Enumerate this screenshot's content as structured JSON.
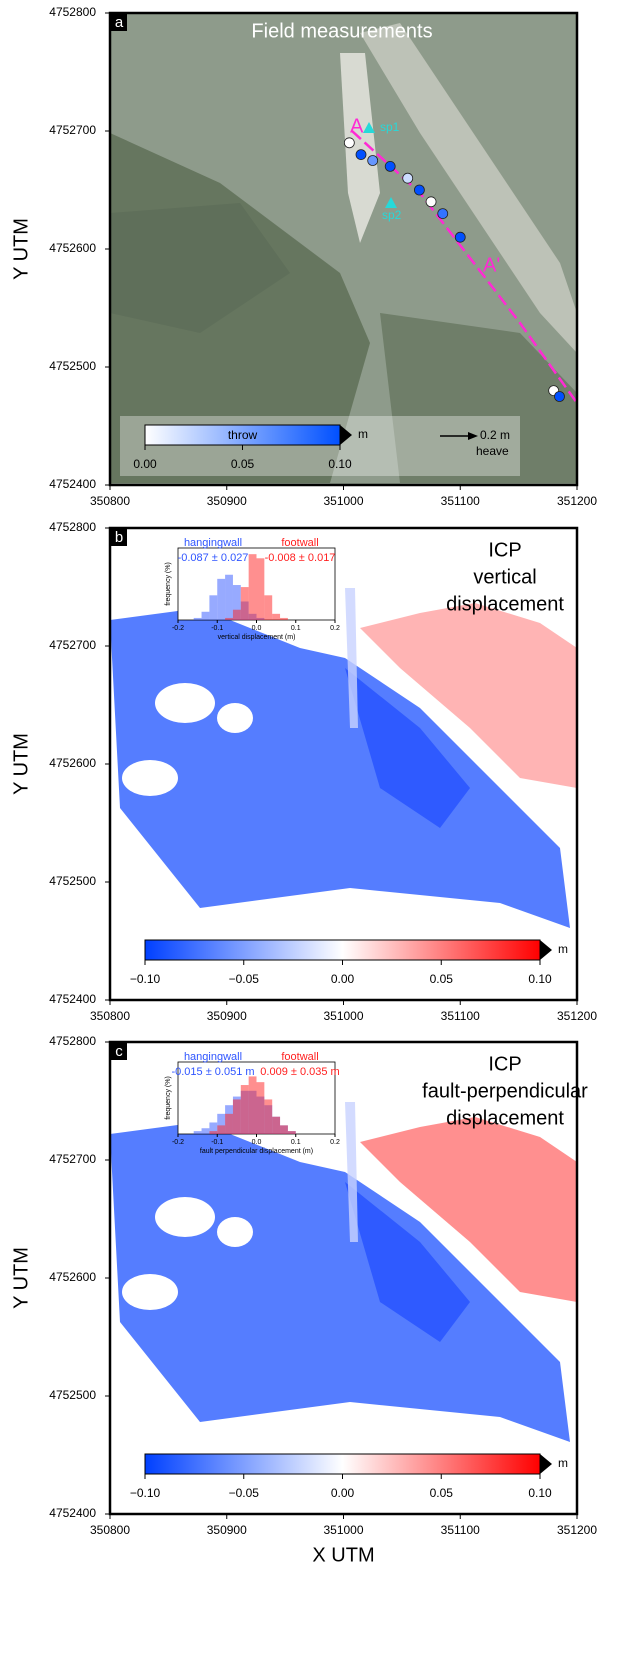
{
  "panels": [
    {
      "label": "a",
      "title": "Field measurements",
      "ylabel": "Y UTM",
      "xlim": [
        350800,
        351200
      ],
      "ylim": [
        4752400,
        4752800
      ],
      "xticks": [
        350800,
        350900,
        351000,
        351100,
        351200
      ],
      "yticks": [
        4752400,
        4752500,
        4752600,
        4752700,
        4752800
      ],
      "colorbar": {
        "label": "throw",
        "unit": "m",
        "lim": [
          0,
          0.1
        ],
        "colors": [
          "#ffffff",
          "#0050ff"
        ],
        "ticks": [
          {
            "value": 0,
            "label": "0.00"
          },
          0.05,
          {
            "value": 0.1,
            "label": "0.10"
          }
        ]
      },
      "annotations": [
        "A",
        "sp1",
        "sp2",
        "A'"
      ],
      "scale_arrow": {
        "label": "0.2 m",
        "caption": "heave"
      },
      "points": {
        "x": [
          351005,
          351015,
          351025,
          351040,
          351055,
          351065,
          351075,
          351085,
          351100,
          351180,
          351185
        ],
        "y": [
          4752690,
          4752680,
          4752675,
          4752670,
          4752660,
          4752650,
          4752640,
          4752630,
          4752610,
          4752480,
          4752475
        ],
        "throw": [
          0.0,
          0.1,
          0.06,
          0.1,
          0.02,
          0.1,
          0.0,
          0.08,
          0.1,
          0.0,
          0.1
        ]
      }
    },
    {
      "label": "b",
      "title_lines": [
        "ICP",
        "vertical",
        "displacement"
      ],
      "ylabel": "Y UTM",
      "xlim": [
        350800,
        351200
      ],
      "ylim": [
        4752400,
        4752800
      ],
      "xticks": [
        350800,
        350900,
        351000,
        351100,
        351200
      ],
      "yticks": [
        4752400,
        4752500,
        4752600,
        4752700,
        4752800
      ],
      "colorbar": {
        "unit": "m",
        "lim": [
          -0.1,
          0.1
        ],
        "colors": [
          "#0040ff",
          "#ffffff",
          "#ff0000"
        ],
        "ticks": [
          {
            "value": -0.1,
            "label": "−0.10"
          },
          {
            "value": -0.05,
            "label": "−0.05"
          },
          {
            "value": 0,
            "label": "0.00"
          },
          0.05,
          {
            "value": 0.1,
            "label": "0.10"
          }
        ]
      },
      "inset": {
        "ylabel": "frequency (%)",
        "xlabel": "vertical displacement (m)",
        "xlim": [
          -0.2,
          0.2
        ],
        "ylim": [
          0,
          35
        ],
        "xticks": [
          -0.2,
          -0.1,
          {
            "value": 0,
            "label": "0.0"
          },
          0.1,
          0.2
        ],
        "bins": [
          -0.2,
          -0.18,
          -0.16,
          -0.14,
          -0.12,
          -0.1,
          -0.08,
          -0.06,
          -0.04,
          -0.02,
          0,
          0.02,
          0.04,
          0.06,
          0.08,
          0.1,
          0.12,
          0.14,
          0.16,
          0.18,
          0.2
        ],
        "series": [
          {
            "name": "hangingwall",
            "stat": "-0.087 ± 0.027",
            "color": "#2f55ff",
            "counts": [
              0,
              0,
              1,
              4,
              12,
              20,
              22,
              17,
              9,
              3,
              1,
              0,
              0,
              0,
              0,
              0,
              0,
              0,
              0,
              0
            ]
          },
          {
            "name": "footwall",
            "stat": "-0.008 ± 0.017",
            "color": "#ff2020",
            "counts": [
              0,
              0,
              0,
              0,
              0,
              0,
              1,
              5,
              16,
              32,
              30,
              12,
              3,
              1,
              0,
              0,
              0,
              0,
              0,
              0
            ]
          }
        ]
      }
    },
    {
      "label": "c",
      "title_lines": [
        "ICP",
        "fault-perpendicular",
        "displacement"
      ],
      "ylabel": "Y UTM",
      "xlabel": "X UTM",
      "xlim": [
        350800,
        351200
      ],
      "ylim": [
        4752400,
        4752800
      ],
      "xticks": [
        350800,
        350900,
        351000,
        351100,
        351200
      ],
      "yticks": [
        4752400,
        4752500,
        4752600,
        4752700,
        4752800
      ],
      "colorbar": {
        "unit": "m",
        "lim": [
          -0.1,
          0.1
        ],
        "colors": [
          "#0040ff",
          "#ffffff",
          "#ff0000"
        ],
        "ticks": [
          {
            "value": -0.1,
            "label": "−0.10"
          },
          {
            "value": -0.05,
            "label": "−0.05"
          },
          {
            "value": 0,
            "label": "0.00"
          },
          0.05,
          {
            "value": 0.1,
            "label": "0.10"
          }
        ]
      },
      "inset": {
        "ylabel": "frequency (%)",
        "xlabel": "fault perpendicular displacement (m)",
        "xlim": [
          -0.2,
          0.2
        ],
        "ylim": [
          0,
          25
        ],
        "xticks": [
          -0.2,
          -0.1,
          {
            "value": 0,
            "label": "0.0"
          },
          0.1,
          0.2
        ],
        "bins": [
          -0.2,
          -0.18,
          -0.16,
          -0.14,
          -0.12,
          -0.1,
          -0.08,
          -0.06,
          -0.04,
          -0.02,
          0,
          0.02,
          0.04,
          0.06,
          0.08,
          0.1,
          0.12,
          0.14,
          0.16,
          0.18,
          0.2
        ],
        "series": [
          {
            "name": "hangingwall",
            "stat": "-0.015 ± 0.051 m",
            "color": "#2f55ff",
            "counts": [
              0,
              0,
              1,
              2,
              4,
              7,
              10,
              13,
              15,
              15,
              13,
              10,
              6,
              3,
              1,
              0,
              0,
              0,
              0,
              0
            ]
          },
          {
            "name": "footwall",
            "stat": "0.009 ± 0.035 m",
            "color": "#ff2020",
            "counts": [
              0,
              0,
              0,
              0,
              1,
              3,
              7,
              12,
              17,
              20,
              18,
              12,
              6,
              3,
              1,
              0,
              0,
              0,
              0,
              0
            ]
          }
        ]
      }
    }
  ]
}
